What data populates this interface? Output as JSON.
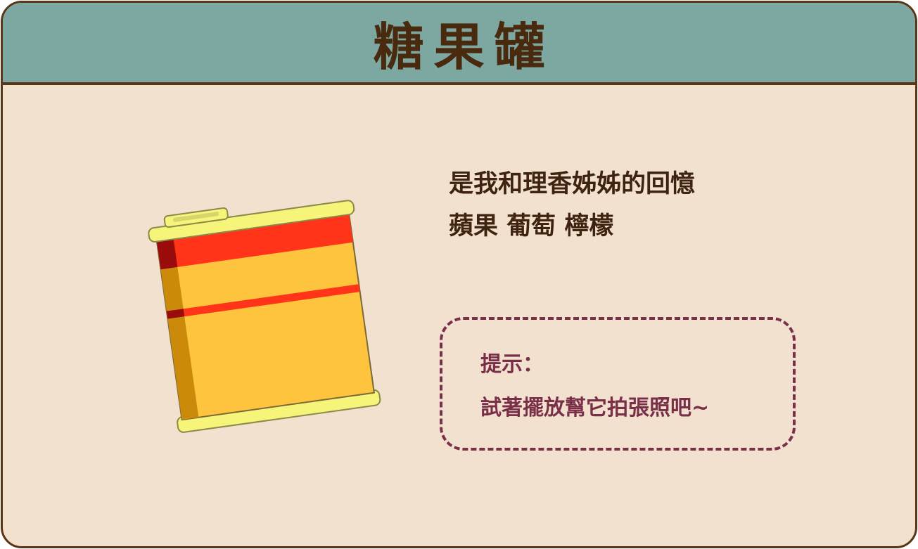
{
  "header": {
    "title": "糖果罐"
  },
  "item": {
    "name": "candy-tin-icon"
  },
  "description": {
    "line1": "是我和理香姊姊的回憶",
    "line2": "蘋果 葡萄 檸檬"
  },
  "hint": {
    "label": "提示：",
    "text": "試著擺放幫它拍張照吧~"
  },
  "colors": {
    "header_bg": "#7da8a2",
    "panel_bg": "#f2e1cf",
    "border": "#5a3516",
    "hint_color": "#7a2f48",
    "tin_body": "#ffc43d",
    "tin_stripe": "#ff3418",
    "tin_rim": "#f7f47a"
  }
}
